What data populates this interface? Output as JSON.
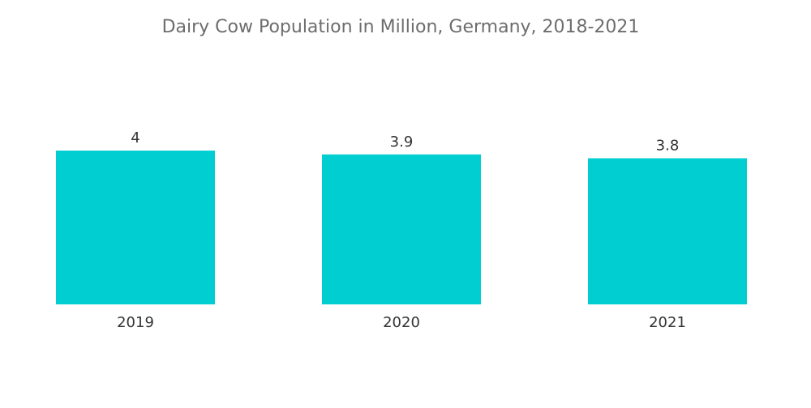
{
  "chart_data": {
    "type": "bar",
    "title": "Dairy Cow Population in Million, Germany, 2018-2021",
    "categories": [
      "2019",
      "2020",
      "2021"
    ],
    "values": [
      4,
      3.9,
      3.8
    ],
    "data_labels": [
      "4",
      "3.9",
      "3.8"
    ],
    "xlabel": "",
    "ylabel": "",
    "ylim": [
      0,
      4
    ],
    "grid": false,
    "legend": "none",
    "bar_color": "#00ced1"
  }
}
